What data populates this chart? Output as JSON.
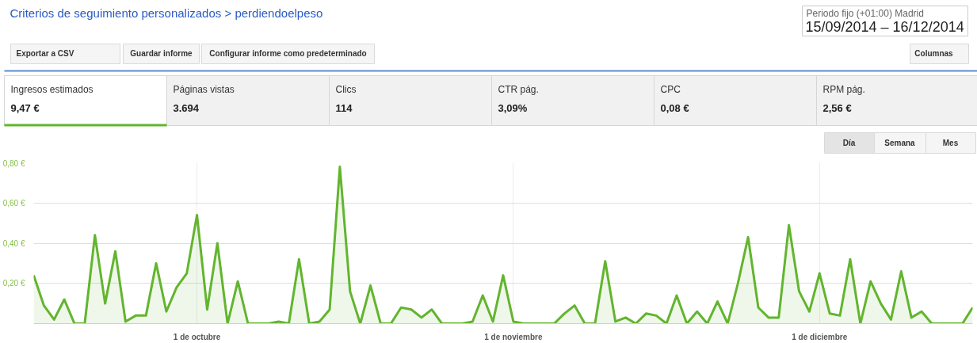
{
  "chart_data": {
    "type": "area",
    "title": "Criterios de seguimiento personalizados > perdiendoelpeso",
    "annotations": [
      "Periodo fijo (+01:00) Madrid",
      "15/09/2014 – 16/12/2014",
      "Exportar a CSV",
      "Guardar informe",
      "Configurar informe como predeterminado",
      "Columnas",
      "Ingresos estimados",
      "9,47 €",
      "Páginas vistas",
      "3.694",
      "Clics",
      "114",
      "CTR pág.",
      "3,09%",
      "CPC",
      "0,08 €",
      "RPM pág.",
      "2,56 €",
      "Día",
      "Semana",
      "Mes"
    ],
    "x": [
      "2014-09-15",
      "2014-09-16",
      "2014-09-17",
      "2014-09-18",
      "2014-09-19",
      "2014-09-20",
      "2014-09-21",
      "2014-09-22",
      "2014-09-23",
      "2014-09-24",
      "2014-09-25",
      "2014-09-26",
      "2014-09-27",
      "2014-09-28",
      "2014-09-29",
      "2014-09-30",
      "2014-10-01",
      "2014-10-02",
      "2014-10-03",
      "2014-10-04",
      "2014-10-05",
      "2014-10-06",
      "2014-10-07",
      "2014-10-08",
      "2014-10-09",
      "2014-10-10",
      "2014-10-11",
      "2014-10-12",
      "2014-10-13",
      "2014-10-14",
      "2014-10-15",
      "2014-10-16",
      "2014-10-17",
      "2014-10-18",
      "2014-10-19",
      "2014-10-20",
      "2014-10-21",
      "2014-10-22",
      "2014-10-23",
      "2014-10-24",
      "2014-10-25",
      "2014-10-26",
      "2014-10-27",
      "2014-10-28",
      "2014-10-29",
      "2014-10-30",
      "2014-10-31",
      "2014-11-01",
      "2014-11-02",
      "2014-11-03",
      "2014-11-04",
      "2014-11-05",
      "2014-11-06",
      "2014-11-07",
      "2014-11-08",
      "2014-11-09",
      "2014-11-10",
      "2014-11-11",
      "2014-11-12",
      "2014-11-13",
      "2014-11-14",
      "2014-11-15",
      "2014-11-16",
      "2014-11-17",
      "2014-11-18",
      "2014-11-19",
      "2014-11-20",
      "2014-11-21",
      "2014-11-22",
      "2014-11-23",
      "2014-11-24",
      "2014-11-25",
      "2014-11-26",
      "2014-11-27",
      "2014-11-28",
      "2014-11-29",
      "2014-11-30",
      "2014-12-01",
      "2014-12-02",
      "2014-12-03",
      "2014-12-04",
      "2014-12-05",
      "2014-12-06",
      "2014-12-07",
      "2014-12-08",
      "2014-12-09",
      "2014-12-10",
      "2014-12-11",
      "2014-12-12",
      "2014-12-13",
      "2014-12-14",
      "2014-12-15",
      "2014-12-16"
    ],
    "series": [
      {
        "color": "#62b52e",
        "values": [
          0.24,
          0.09,
          0.02,
          0.12,
          0,
          0,
          0.44,
          0.1,
          0.36,
          0.01,
          0.04,
          0.04,
          0.3,
          0.06,
          0.18,
          0.25,
          0.54,
          0.07,
          0.4,
          0,
          0.21,
          0,
          0,
          0,
          0.01,
          0,
          0.32,
          0,
          0.01,
          0.07,
          0.78,
          0.16,
          0,
          0.19,
          0,
          0,
          0.08,
          0.07,
          0.03,
          0.07,
          0,
          0,
          0,
          0.01,
          0.14,
          0.01,
          0.24,
          0.01,
          0,
          0,
          0,
          0,
          0.05,
          0.09,
          0,
          0,
          0.31,
          0.01,
          0.03,
          0,
          0.05,
          0.04,
          0,
          0.14,
          0,
          0.06,
          0,
          0.11,
          0,
          0.2,
          0.43,
          0.08,
          0.03,
          0.03,
          0.49,
          0.16,
          0.06,
          0.25,
          0.05,
          0.04,
          0.32,
          0,
          0.21,
          0.1,
          0.02,
          0.26,
          0.03,
          0.06,
          0,
          0,
          0,
          0,
          0.08
        ]
      }
    ],
    "xlim": [
      "2014-09-15",
      "2014-12-16"
    ],
    "xticks": [
      {
        "value": "2014-10-01",
        "label": "1 de octubre"
      },
      {
        "value": "2014-11-01",
        "label": "1 de noviembre"
      },
      {
        "value": "2014-12-01",
        "label": "1 de diciembre"
      }
    ],
    "ylim": [
      0,
      0.8
    ],
    "yticks": [
      {
        "value": 0,
        "label": null
      },
      {
        "value": 0.2,
        "label": "0,20 €"
      },
      {
        "value": 0.4,
        "label": "0,40 €"
      },
      {
        "value": 0.6,
        "label": "0,60 €"
      },
      {
        "value": 0.8,
        "label": "0,80 €"
      }
    ],
    "grid": true,
    "line_style": "solid"
  }
}
